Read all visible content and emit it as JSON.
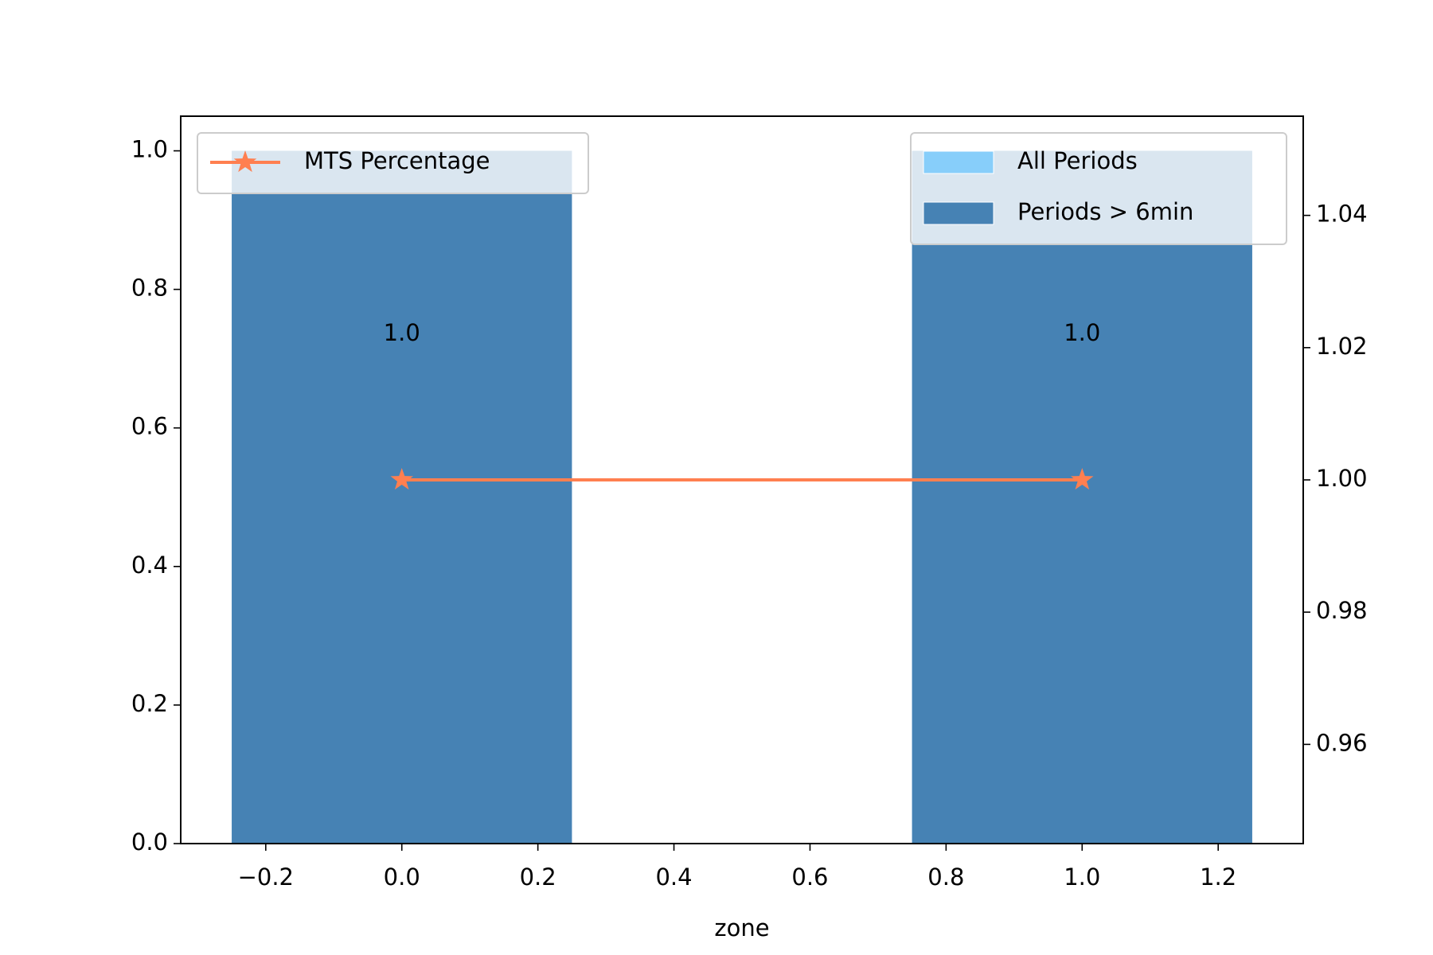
{
  "chart_data": {
    "type": "bar",
    "x_label": "zone",
    "x": [
      0,
      1
    ],
    "bar_width": 0.5,
    "series": [
      {
        "name": "All Periods",
        "color": "#87cefa",
        "values": [
          1,
          1
        ]
      },
      {
        "name": "Periods > 6min",
        "color": "#4682b4",
        "values": [
          1,
          1
        ]
      },
      {
        "name": "MTS Percentage",
        "color": "#ff7f50",
        "type": "line",
        "marker": "*",
        "axis": "y2",
        "values": [
          1,
          1
        ],
        "value_labels": [
          "1.0",
          "1.0"
        ]
      }
    ],
    "xlim": [
      -0.325,
      1.325
    ],
    "xticks": [
      {
        "value": -0.2,
        "label": "−0.2"
      },
      {
        "value": 0,
        "label": "0.0"
      },
      0.2,
      0.4,
      0.6,
      0.8,
      {
        "value": 1,
        "label": "1.0"
      },
      1.2
    ],
    "ylim": [
      0,
      1.05
    ],
    "yticks": [
      {
        "value": 0,
        "label": "0.0"
      },
      0.2,
      0.4,
      0.6,
      0.8,
      {
        "value": 1,
        "label": "1.0"
      }
    ],
    "y2lim": [
      0.945,
      1.055
    ],
    "y2ticks": [
      0.96,
      0.98,
      {
        "value": 1,
        "label": "1.00"
      },
      1.02,
      1.04
    ],
    "legend": [
      "upper left",
      "upper right"
    ]
  }
}
